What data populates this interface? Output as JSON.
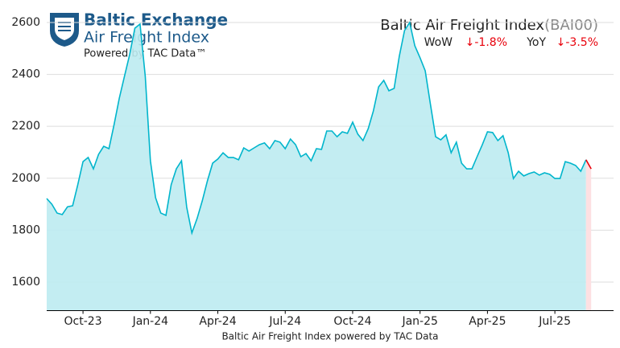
{
  "header": {
    "brand": "Baltic Exchange",
    "product": "Air Freight Index",
    "powered": "Powered by TAC Data™"
  },
  "chart_data": {
    "type": "line",
    "title": "Baltic Air Freight Index",
    "subtitle": "(BAI00)",
    "stats": [
      {
        "label": "WoW",
        "value": "↓-1.8%"
      },
      {
        "label": "YoY",
        "value": "↓-3.5%"
      }
    ],
    "caption": "Baltic Air Freight Index powered by TAC Data",
    "categories": [
      null,
      null,
      null,
      null,
      null,
      null,
      null,
      "Oct-23",
      null,
      null,
      null,
      null,
      null,
      null,
      null,
      null,
      null,
      null,
      null,
      null,
      "Jan-24",
      null,
      null,
      null,
      null,
      null,
      null,
      null,
      null,
      null,
      null,
      null,
      null,
      "Apr-24",
      null,
      null,
      null,
      null,
      null,
      null,
      null,
      null,
      null,
      null,
      null,
      null,
      "Jul-24",
      null,
      null,
      null,
      null,
      null,
      null,
      null,
      null,
      null,
      null,
      null,
      null,
      "Oct-24",
      null,
      null,
      null,
      null,
      null,
      null,
      null,
      null,
      null,
      null,
      null,
      null,
      "Jan-25",
      null,
      null,
      null,
      null,
      null,
      null,
      null,
      null,
      null,
      null,
      null,
      null,
      "Apr-25",
      null,
      null,
      null,
      null,
      null,
      null,
      null,
      null,
      null,
      null,
      null,
      null,
      "Jul-25",
      null,
      null,
      null,
      null,
      null,
      null,
      null
    ],
    "series": [
      {
        "name": "BAI00",
        "color": "#00b5cc",
        "fill": "#bdebf1",
        "values": [
          1922,
          1900,
          1866,
          1860,
          1890,
          1894,
          1975,
          2064,
          2080,
          2036,
          2092,
          2123,
          2114,
          2207,
          2309,
          2393,
          2476,
          2578,
          2594,
          2393,
          2067,
          1925,
          1866,
          1857,
          1975,
          2036,
          2067,
          1888,
          1789,
          1845,
          1913,
          1990,
          2058,
          2074,
          2098,
          2080,
          2080,
          2071,
          2117,
          2105,
          2117,
          2129,
          2136,
          2114,
          2145,
          2139,
          2114,
          2151,
          2129,
          2083,
          2095,
          2067,
          2114,
          2111,
          2182,
          2182,
          2160,
          2179,
          2173,
          2216,
          2170,
          2145,
          2191,
          2259,
          2352,
          2377,
          2337,
          2346,
          2470,
          2569,
          2600,
          2510,
          2464,
          2414,
          2284,
          2160,
          2148,
          2167,
          2098,
          2139,
          2058,
          2036,
          2036,
          2083,
          2129,
          2179,
          2176,
          2145,
          2164,
          2098,
          1999,
          2027,
          2009,
          2018,
          2024,
          2012,
          2021,
          2015,
          1999,
          1999,
          2064,
          2058,
          2049,
          2027,
          2071,
          2036
        ]
      }
    ],
    "last_change_color": "#e8000b",
    "last_change_fill": "#fde0e2",
    "ylim": [
      1490,
      2660
    ],
    "yticks": [
      1600,
      1800,
      2000,
      2200,
      2400,
      2600
    ],
    "grid": true
  }
}
